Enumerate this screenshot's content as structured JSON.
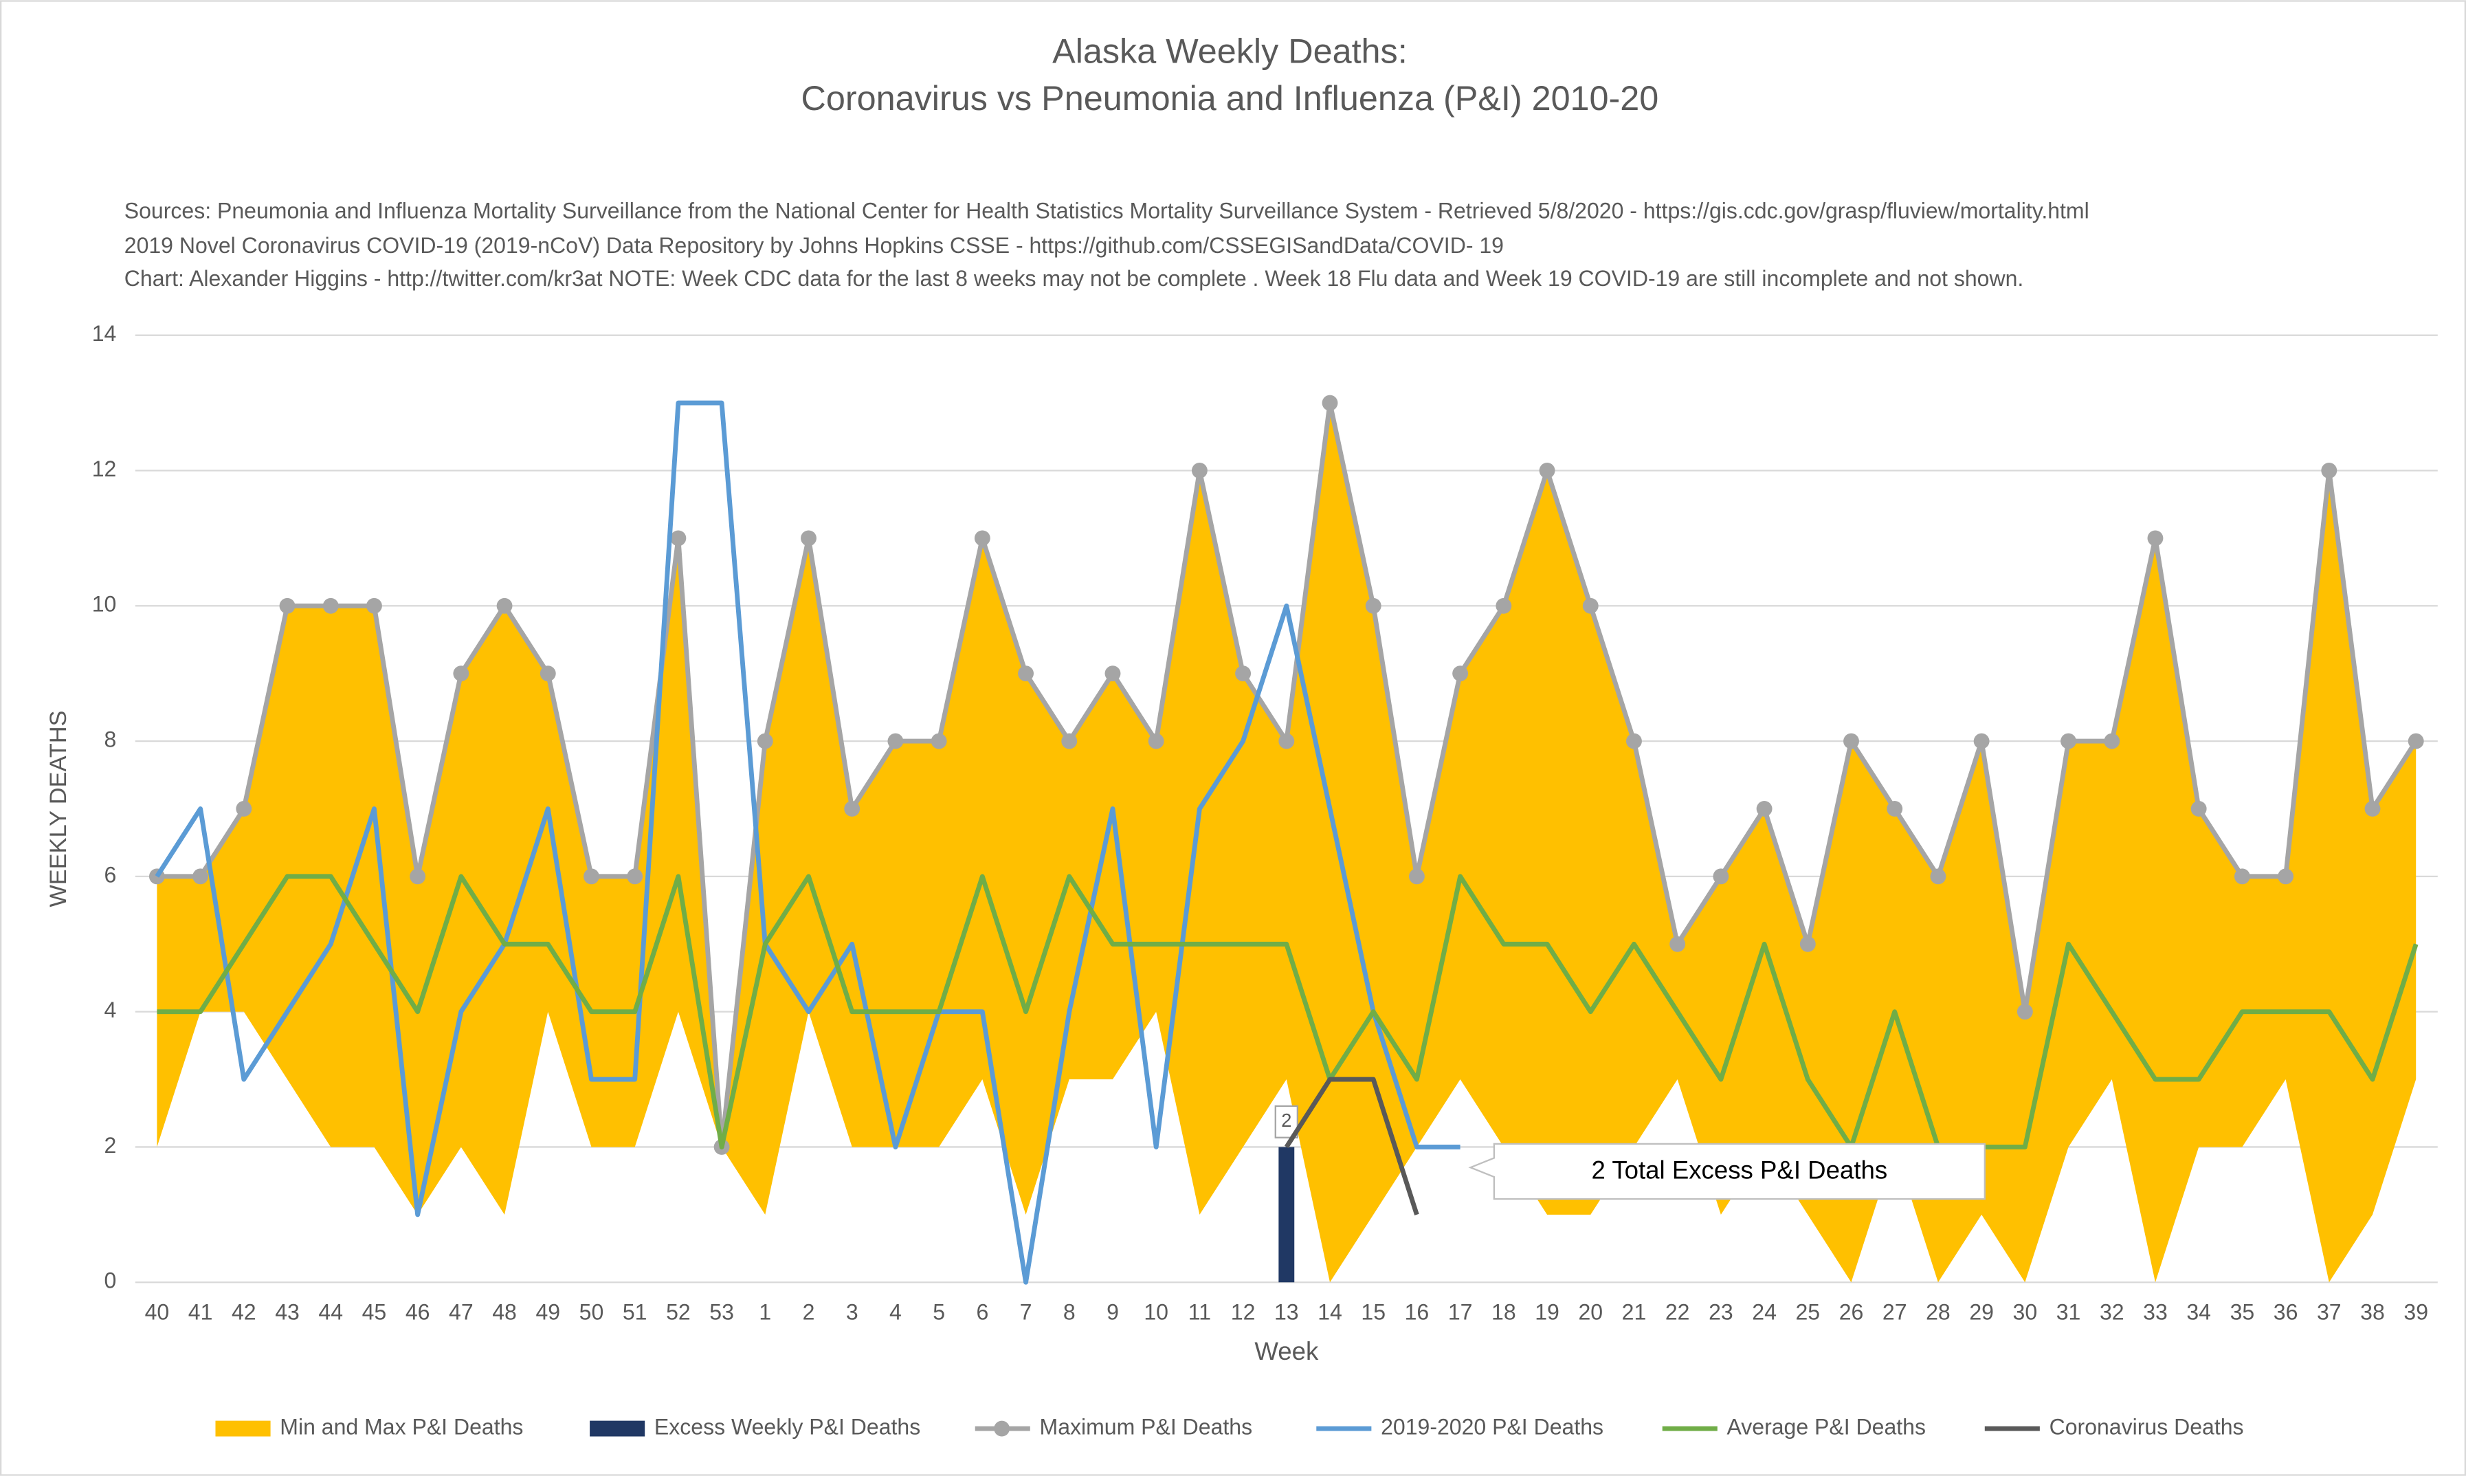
{
  "chart_data": {
    "type": "combo",
    "title_lines": [
      "Alaska Weekly Deaths:",
      "Coronavirus vs Pneumonia and Influenza (P&I) 2010-20"
    ],
    "notes": [
      "Sources: Pneumonia and Influenza Mortality Surveillance from the National Center for Health Statistics Mortality Surveillance System - Retrieved 5/8/2020 - https://gis.cdc.gov/grasp/fluview/mortality.html",
      "2019 Novel Coronavirus COVID-19 (2019-nCoV) Data Repository by Johns Hopkins CSSE - https://github.com/CSSEGISandData/COVID- 19",
      "Chart: Alexander Higgins - http://twitter.com/kr3at   NOTE: Week CDC data for the last 8 weeks may not be complete . Week 18 Flu data and Week 19 COVID-19 are still incomplete and not shown."
    ],
    "y_label": "WEEKLY DEATHS",
    "x_label": "Week",
    "annotation": "2 Total Excess P&I Deaths",
    "ylim": [
      0,
      14
    ],
    "yticks": [
      0,
      2,
      4,
      6,
      8,
      10,
      12,
      14
    ],
    "grid": true,
    "legend": "bottom",
    "categories": [
      "40",
      "41",
      "42",
      "43",
      "44",
      "45",
      "46",
      "47",
      "48",
      "49",
      "50",
      "51",
      "52",
      "53",
      "1",
      "2",
      "3",
      "4",
      "5",
      "6",
      "7",
      "8",
      "9",
      "10",
      "11",
      "12",
      "13",
      "14",
      "15",
      "16",
      "17",
      "18",
      "19",
      "20",
      "21",
      "22",
      "23",
      "24",
      "25",
      "26",
      "27",
      "28",
      "29",
      "30",
      "31",
      "32",
      "33",
      "34",
      "35",
      "36",
      "37",
      "38",
      "39"
    ],
    "series": [
      {
        "name": "Min and Max P&I Deaths",
        "kind": "area",
        "color": "#FFC000",
        "low": [
          2,
          4,
          4,
          3,
          2,
          2,
          1,
          2,
          1,
          4,
          2,
          2,
          4,
          2,
          1,
          4,
          2,
          2,
          2,
          3,
          1,
          3,
          3,
          4,
          1,
          2,
          3,
          0,
          1,
          2,
          3,
          2,
          1,
          1,
          2,
          3,
          1,
          2,
          1,
          0,
          2,
          0,
          1,
          0,
          2,
          3,
          0,
          2,
          2,
          3,
          0,
          1,
          3
        ],
        "high": [
          6,
          6,
          7,
          10,
          10,
          10,
          6,
          9,
          10,
          9,
          6,
          6,
          11,
          2,
          8,
          11,
          7,
          8,
          8,
          11,
          9,
          8,
          9,
          8,
          12,
          9,
          8,
          13,
          10,
          6,
          9,
          10,
          12,
          10,
          8,
          5,
          6,
          7,
          5,
          8,
          7,
          6,
          8,
          4,
          8,
          8,
          11,
          7,
          6,
          6,
          12,
          7,
          8
        ]
      },
      {
        "name": "Excess Weekly P&I Deaths",
        "kind": "bar",
        "color": "#203864",
        "values": [
          null,
          null,
          null,
          null,
          null,
          null,
          null,
          null,
          null,
          null,
          null,
          null,
          null,
          null,
          null,
          null,
          null,
          null,
          null,
          null,
          null,
          null,
          null,
          null,
          null,
          null,
          2,
          null,
          null,
          null,
          null,
          null,
          null,
          null,
          null,
          null,
          null,
          null,
          null,
          null,
          null,
          null,
          null,
          null,
          null,
          null,
          null,
          null,
          null,
          null,
          null,
          null,
          null
        ]
      },
      {
        "name": "Maximum P&I Deaths",
        "kind": "line",
        "markers": true,
        "color": "#A5A5A5",
        "values": [
          6,
          6,
          7,
          10,
          10,
          10,
          6,
          9,
          10,
          9,
          6,
          6,
          11,
          2,
          8,
          11,
          7,
          8,
          8,
          11,
          9,
          8,
          9,
          8,
          12,
          9,
          8,
          13,
          10,
          6,
          9,
          10,
          12,
          10,
          8,
          5,
          6,
          7,
          5,
          8,
          7,
          6,
          8,
          4,
          8,
          8,
          11,
          7,
          6,
          6,
          12,
          7,
          8
        ]
      },
      {
        "name": "2019-2020 P&I Deaths",
        "kind": "line",
        "color": "#5B9BD5",
        "values": [
          6,
          7,
          3,
          4,
          5,
          7,
          1,
          4,
          5,
          7,
          3,
          3,
          13,
          13,
          5,
          4,
          5,
          2,
          4,
          4,
          0,
          4,
          7,
          2,
          7,
          8,
          10,
          7,
          4,
          2,
          2,
          null,
          null,
          null,
          null,
          null,
          null,
          null,
          null,
          null,
          null,
          null,
          null,
          null,
          null,
          null,
          null,
          null,
          null,
          null,
          null,
          null,
          null
        ]
      },
      {
        "name": "Average P&I Deaths",
        "kind": "line",
        "color": "#70AD47",
        "values": [
          4,
          4,
          5,
          6,
          6,
          5,
          4,
          6,
          5,
          5,
          4,
          4,
          6,
          2,
          5,
          6,
          4,
          4,
          4,
          6,
          4,
          6,
          5,
          5,
          5,
          5,
          5,
          3,
          4,
          3,
          6,
          5,
          5,
          4,
          5,
          4,
          3,
          5,
          3,
          2,
          4,
          2,
          2,
          2,
          5,
          4,
          3,
          3,
          4,
          4,
          4,
          3,
          5
        ]
      },
      {
        "name": "Coronavirus Deaths",
        "kind": "line",
        "color": "#595959",
        "values": [
          null,
          null,
          null,
          null,
          null,
          null,
          null,
          null,
          null,
          null,
          null,
          null,
          null,
          null,
          null,
          null,
          null,
          null,
          null,
          null,
          null,
          null,
          null,
          null,
          null,
          null,
          2,
          3,
          3,
          1,
          null,
          null,
          null,
          null,
          null,
          null,
          null,
          null,
          null,
          null,
          null,
          null,
          null,
          null,
          null,
          null,
          null,
          null,
          null,
          null,
          null,
          null,
          null
        ]
      }
    ]
  }
}
